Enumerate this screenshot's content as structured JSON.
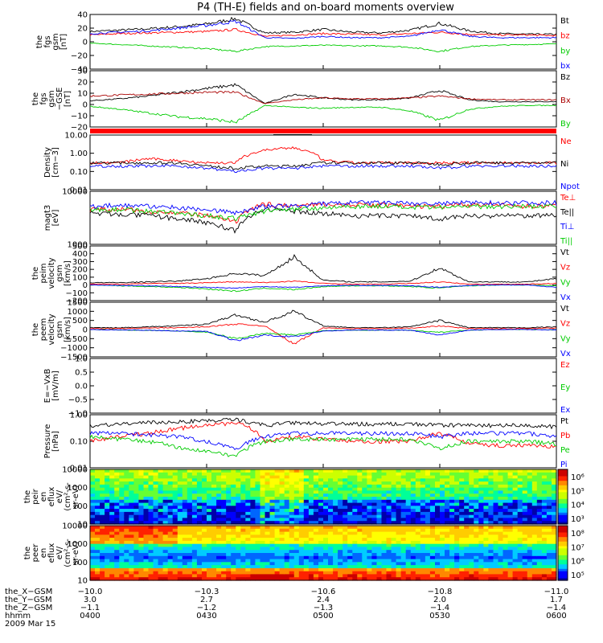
{
  "title": "P4 (TH-E) fields and on-board moments overview",
  "colors": {
    "black": "#000000",
    "red": "#ff0000",
    "green": "#00cc00",
    "blue": "#0000ff",
    "darkred": "#aa0000"
  },
  "panels": [
    {
      "id": "fgs_gsm",
      "ylabel": [
        "the",
        "fgs",
        "gsm",
        "[nT]"
      ],
      "ticks": [
        "40",
        "20",
        "0",
        "−20",
        "−40"
      ],
      "legend": [
        "Bt",
        "bz",
        "by",
        "bx"
      ]
    },
    {
      "id": "fgs_gse",
      "ylabel": [
        "the",
        "fgs",
        "gsm",
        "−GSE",
        "[nT]"
      ],
      "ticks": [
        "30",
        "20",
        "10",
        "0",
        "−10",
        "−20"
      ],
      "legend": [
        "Bz",
        "Bx",
        "By"
      ]
    },
    {
      "id": "density",
      "ylabel": [
        "Density",
        "[cm−3]"
      ],
      "ticks": [
        "10.00",
        "1.00",
        "0.10",
        "0.01"
      ],
      "legend": [
        "Ne",
        "Ni",
        "Npot"
      ]
    },
    {
      "id": "temp",
      "ylabel": [
        "magt3",
        "[eV]"
      ],
      "ticks": [
        "10000",
        "1000"
      ],
      "legend": [
        "Te⊥",
        "Te||",
        "Ti⊥",
        "Ti||"
      ]
    },
    {
      "id": "peim_vel",
      "ylabel": [
        "the",
        "peim",
        "velocity",
        "gsm",
        "[km/s]"
      ],
      "ticks": [
        "500",
        "400",
        "300",
        "200",
        "100",
        "0",
        "−100",
        "−200"
      ],
      "legend": [
        "Vt",
        "Vz",
        "Vy",
        "Vx"
      ]
    },
    {
      "id": "peem_vel",
      "ylabel": [
        "the",
        "peem",
        "velocity",
        "gsm",
        "[km/s]"
      ],
      "ticks": [
        "1500",
        "1000",
        "500",
        "0",
        "−500",
        "−1000",
        "−1500"
      ],
      "legend": [
        "Vt",
        "Vz",
        "Vy",
        "Vx"
      ]
    },
    {
      "id": "efield",
      "ylabel": [
        "E=−VxB",
        "[mV/m]"
      ],
      "ticks": [
        "1.0",
        "0.5",
        "0.0",
        "−0.5",
        "−1.0"
      ],
      "legend": [
        "Ez",
        "Ey",
        "Ex"
      ]
    },
    {
      "id": "pressure",
      "ylabel": [
        "Pressure",
        "[nPa]"
      ],
      "ticks": [
        "1.00",
        "0.10",
        "0.01"
      ],
      "legend": [
        "Pt",
        "Pb",
        "Pe",
        "Pi"
      ]
    },
    {
      "id": "peir_spec",
      "ylabel": [
        "the",
        "peir",
        "en",
        "eflux",
        "eV/",
        "(cm²-s-",
        "sr-eV)"
      ],
      "ticks": [
        "10000",
        "1000",
        "100",
        "10"
      ],
      "cbar": [
        "10⁶",
        "10⁵",
        "10⁴",
        "10³"
      ]
    },
    {
      "id": "peer_spec",
      "ylabel": [
        "the",
        "peer",
        "en",
        "eflux",
        "eV/",
        "(cm²-s-",
        "sr-eV)"
      ],
      "ticks": [
        "10000",
        "1000",
        "100",
        "10"
      ],
      "cbar": [
        "10⁸",
        "10⁷",
        "10⁶",
        "10⁵"
      ]
    }
  ],
  "xaxis": {
    "rows": [
      {
        "label": "the_X−GSM",
        "values": [
          "−10.0",
          "−10.3",
          "−10.6",
          "−10.8",
          "−11.0"
        ]
      },
      {
        "label": "the_Y−GSM",
        "values": [
          "3.0",
          "2.7",
          "2.4",
          "2.0",
          "1.7"
        ]
      },
      {
        "label": "the_Z−GSM",
        "values": [
          "−1.1",
          "−1.2",
          "−1.3",
          "−1.4",
          "−1.4"
        ]
      },
      {
        "label": "hhmm",
        "values": [
          "0400",
          "0430",
          "0500",
          "0530",
          "0600"
        ]
      }
    ],
    "date": "2009 Mar 15"
  },
  "chart_data": {
    "type": "line",
    "title": "P4 (TH-E) fields and on-board moments overview",
    "x_range": [
      "0400",
      "0600"
    ],
    "panels": [
      {
        "name": "fgs gsm",
        "ylim": [
          -40,
          40
        ],
        "series": [
          {
            "name": "Bt",
            "color": "black",
            "values": [
              15,
              17,
              19,
              22,
              26,
              34,
              13,
              14,
              18,
              14,
              13,
              17,
              27,
              16,
              12,
              11,
              11
            ]
          },
          {
            "name": "bz",
            "color": "red",
            "values": [
              10,
              12,
              13,
              14,
              15,
              18,
              8,
              10,
              12,
              11,
              10,
              12,
              14,
              11,
              10,
              10,
              9
            ]
          },
          {
            "name": "by",
            "color": "green",
            "values": [
              -2,
              -4,
              -6,
              -8,
              -10,
              -14,
              -7,
              -6,
              -5,
              -6,
              -6,
              -8,
              -14,
              -7,
              -5,
              -4,
              -3
            ]
          },
          {
            "name": "bx",
            "color": "blue",
            "values": [
              12,
              14,
              16,
              20,
              24,
              30,
              6,
              5,
              8,
              6,
              6,
              8,
              18,
              8,
              6,
              6,
              6
            ]
          }
        ]
      },
      {
        "name": "fgs gse",
        "ylim": [
          -25,
          35
        ],
        "series": [
          {
            "name": "Bz",
            "color": "black",
            "values": [
              3,
              5,
              8,
              12,
              16,
              20,
              0,
              10,
              6,
              4,
              4,
              6,
              14,
              4,
              2,
              2,
              2
            ]
          },
          {
            "name": "Bx",
            "color": "darkred",
            "values": [
              8,
              9,
              10,
              11,
              12,
              12,
              0,
              4,
              6,
              5,
              5,
              6,
              8,
              5,
              4,
              4,
              4
            ]
          },
          {
            "name": "By",
            "color": "green",
            "values": [
              -3,
              -6,
              -10,
              -14,
              -16,
              -20,
              -2,
              -4,
              -5,
              -4,
              -4,
              -8,
              -18,
              -6,
              -3,
              -2,
              -2
            ]
          }
        ]
      },
      {
        "name": "density",
        "ylim": [
          0.01,
          10
        ],
        "series": [
          {
            "name": "Ne",
            "color": "red",
            "values": [
              0.3,
              0.3,
              0.5,
              0.4,
              0.3,
              0.3,
              1.5,
              2.0,
              0.4,
              0.3,
              0.3,
              0.3,
              0.3,
              0.3,
              0.3,
              0.3,
              0.3
            ]
          },
          {
            "name": "Ni",
            "color": "black",
            "values": [
              0.3,
              0.3,
              0.3,
              0.3,
              0.2,
              0.15,
              0.2,
              0.2,
              0.3,
              0.3,
              0.3,
              0.3,
              0.25,
              0.3,
              0.3,
              0.3,
              0.3
            ]
          },
          {
            "name": "Npot",
            "color": "blue",
            "values": [
              0.2,
              0.2,
              0.2,
              0.2,
              0.15,
              0.1,
              0.15,
              0.15,
              0.2,
              0.2,
              0.2,
              0.2,
              0.15,
              0.2,
              0.2,
              0.2,
              0.2
            ]
          }
        ]
      },
      {
        "name": "temperature",
        "ylim": [
          300,
          15000
        ],
        "series": [
          {
            "name": "Te⊥",
            "color": "red",
            "values": [
              4000,
              4000,
              3500,
              3000,
              2500,
              1500,
              6000,
              5000,
              6000,
              5500,
              5500,
              5000,
              5000,
              5500,
              5500,
              5000,
              5500
            ]
          },
          {
            "name": "Te||",
            "color": "black",
            "values": [
              3000,
              2800,
              2500,
              2000,
              1500,
              800,
              4000,
              3500,
              3000,
              2500,
              2500,
              2500,
              2000,
              2500,
              2500,
              2500,
              2500
            ]
          },
          {
            "name": "Ti⊥",
            "color": "blue",
            "values": [
              5000,
              5500,
              5000,
              4500,
              4000,
              3000,
              5000,
              5000,
              6000,
              6500,
              6500,
              6000,
              6000,
              6500,
              6500,
              6500,
              6500
            ]
          },
          {
            "name": "Ti||",
            "color": "green",
            "values": [
              4000,
              4000,
              3500,
              3000,
              2500,
              2000,
              3500,
              4000,
              4500,
              5000,
              5000,
              4500,
              4500,
              5000,
              5000,
              5000,
              5000
            ]
          }
        ]
      },
      {
        "name": "peim velocity",
        "ylim": [
          -200,
          500
        ],
        "series": [
          {
            "name": "Vt",
            "color": "black",
            "values": [
              30,
              30,
              40,
              50,
              80,
              150,
              120,
              360,
              60,
              40,
              40,
              50,
              220,
              40,
              40,
              40,
              80
            ]
          },
          {
            "name": "Vz",
            "color": "red",
            "values": [
              10,
              10,
              20,
              20,
              30,
              40,
              30,
              50,
              20,
              10,
              10,
              20,
              40,
              10,
              10,
              10,
              20
            ]
          },
          {
            "name": "Vy",
            "color": "green",
            "values": [
              0,
              -10,
              -20,
              -30,
              -50,
              -80,
              -40,
              -60,
              -20,
              -10,
              -10,
              -20,
              -40,
              -10,
              0,
              0,
              -10
            ]
          },
          {
            "name": "Vx",
            "color": "blue",
            "values": [
              0,
              -5,
              -10,
              -20,
              -30,
              -40,
              -20,
              -30,
              -10,
              -5,
              -5,
              -10,
              -30,
              -5,
              0,
              0,
              -30
            ]
          }
        ]
      },
      {
        "name": "peem velocity",
        "ylim": [
          -1500,
          1500
        ],
        "series": [
          {
            "name": "Vt",
            "color": "black",
            "values": [
              100,
              100,
              150,
              200,
              300,
              800,
              400,
              1000,
              200,
              100,
              100,
              150,
              500,
              100,
              100,
              100,
              150
            ]
          },
          {
            "name": "Vz",
            "color": "red",
            "values": [
              50,
              50,
              80,
              100,
              150,
              300,
              200,
              -800,
              100,
              50,
              50,
              80,
              200,
              50,
              50,
              50,
              80
            ]
          },
          {
            "name": "Vy",
            "color": "green",
            "values": [
              0,
              -20,
              -40,
              -80,
              -150,
              -500,
              -200,
              -300,
              -60,
              -30,
              -30,
              -40,
              -150,
              -30,
              0,
              0,
              -20
            ]
          },
          {
            "name": "Vx",
            "color": "blue",
            "values": [
              0,
              -20,
              -40,
              -80,
              -100,
              -600,
              -300,
              -400,
              -80,
              -30,
              -30,
              -40,
              -300,
              -30,
              0,
              0,
              -20
            ]
          }
        ]
      },
      {
        "name": "E=-VxB",
        "ylim": [
          -1,
          1
        ],
        "series": []
      },
      {
        "name": "pressure",
        "ylim": [
          0.01,
          1
        ],
        "series": [
          {
            "name": "Pt",
            "color": "black",
            "values": [
              0.4,
              0.45,
              0.5,
              0.55,
              0.6,
              0.65,
              0.4,
              0.5,
              0.45,
              0.45,
              0.45,
              0.45,
              0.4,
              0.4,
              0.4,
              0.4,
              0.35
            ]
          },
          {
            "name": "Pb",
            "color": "red",
            "values": [
              0.1,
              0.15,
              0.2,
              0.3,
              0.4,
              0.5,
              0.1,
              0.15,
              0.12,
              0.1,
              0.1,
              0.1,
              0.2,
              0.08,
              0.07,
              0.07,
              0.06
            ]
          },
          {
            "name": "Pe",
            "color": "green",
            "values": [
              0.15,
              0.12,
              0.1,
              0.06,
              0.04,
              0.025,
              0.1,
              0.12,
              0.12,
              0.12,
              0.12,
              0.12,
              0.05,
              0.1,
              0.1,
              0.1,
              0.08
            ]
          },
          {
            "name": "Pi",
            "color": "blue",
            "values": [
              0.2,
              0.2,
              0.18,
              0.15,
              0.1,
              0.05,
              0.15,
              0.2,
              0.2,
              0.2,
              0.2,
              0.2,
              0.15,
              0.2,
              0.2,
              0.2,
              0.15
            ]
          }
        ]
      }
    ]
  }
}
